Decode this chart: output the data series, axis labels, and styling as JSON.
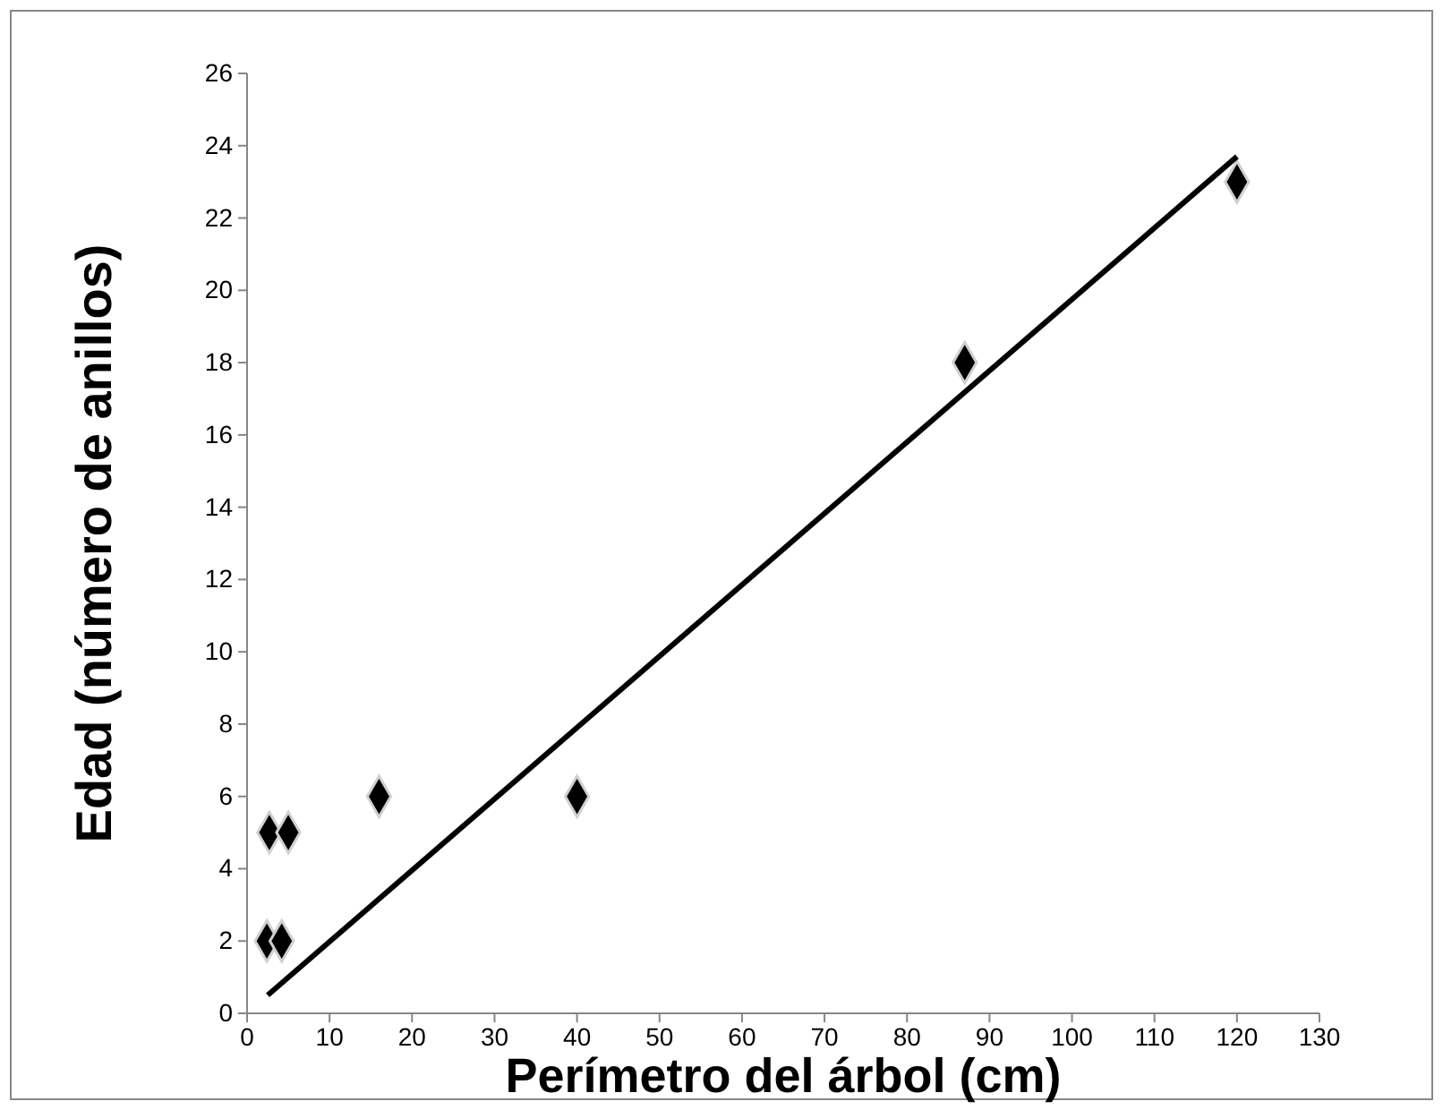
{
  "chart_data": {
    "type": "scatter",
    "xlabel": "Perímetro del árbol  (cm)",
    "ylabel": "Edad (número de anillos)",
    "xlim": [
      0,
      130
    ],
    "xticks": [
      0,
      10,
      20,
      30,
      40,
      50,
      60,
      70,
      80,
      90,
      100,
      110,
      120,
      130
    ],
    "ylim": [
      0,
      26
    ],
    "yticks": [
      0,
      2,
      4,
      6,
      8,
      10,
      12,
      14,
      16,
      18,
      20,
      22,
      24,
      26
    ],
    "grid": false,
    "marker": "diamond",
    "series": [
      {
        "type": "scatter",
        "color": "#000000",
        "x": [
          2.4,
          4.2,
          2.7,
          5,
          16,
          40,
          87,
          120
        ],
        "values": [
          2,
          2,
          5,
          5,
          6,
          6,
          18,
          23
        ]
      },
      {
        "type": "line",
        "color": "#000000",
        "marker": "none",
        "line_style": "solid",
        "x": [
          2.5,
          120
        ],
        "values": [
          0.5,
          23.7
        ]
      }
    ]
  }
}
